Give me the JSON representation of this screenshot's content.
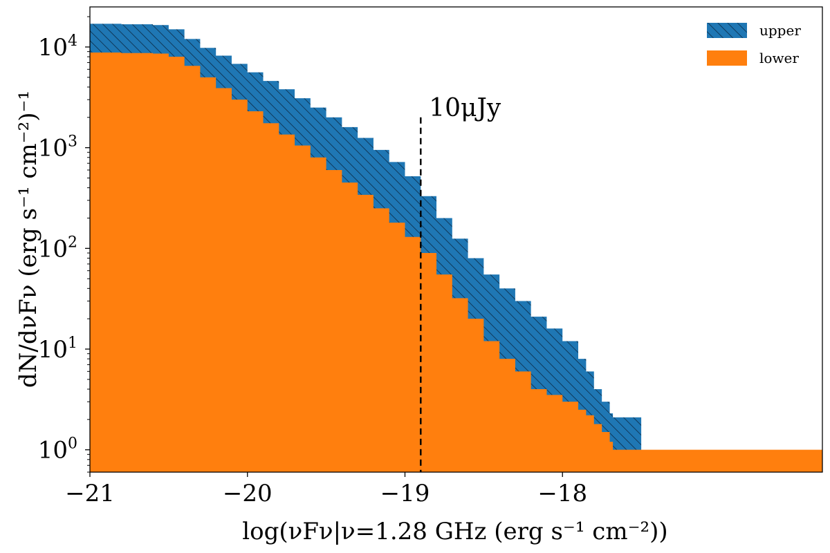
{
  "chart_data": {
    "type": "area",
    "title": "",
    "xlabel": "log(νFν|ν=1.28 GHz (erg s⁻¹ cm⁻²))",
    "ylabel": "dN/dνFν (erg s⁻¹ cm⁻²)⁻¹",
    "xlim": [
      -21.0,
      -16.35
    ],
    "ylim": [
      0.6,
      25000
    ],
    "y_scale": "log",
    "grid": false,
    "legend_position": "top-right",
    "x_ticks": [
      -21,
      -20,
      -19,
      -18
    ],
    "x_tick_labels": [
      "−21",
      "−20",
      "−19",
      "−18"
    ],
    "y_ticks": [
      1,
      10,
      100,
      1000,
      10000
    ],
    "y_tick_labels": [
      {
        "base": "10",
        "exp": "0"
      },
      {
        "base": "10",
        "exp": "1"
      },
      {
        "base": "10",
        "exp": "2"
      },
      {
        "base": "10",
        "exp": "3"
      },
      {
        "base": "10",
        "exp": "4"
      }
    ],
    "series": [
      {
        "name": "upper",
        "color": "#1f77b4",
        "hatch": true,
        "x": [
          -21.0,
          -20.8,
          -20.6,
          -20.5,
          -20.4,
          -20.3,
          -20.2,
          -20.1,
          -20.0,
          -19.9,
          -19.8,
          -19.7,
          -19.6,
          -19.5,
          -19.4,
          -19.3,
          -19.2,
          -19.1,
          -19.0,
          -18.9,
          -18.8,
          -18.7,
          -18.6,
          -18.5,
          -18.4,
          -18.3,
          -18.2,
          -18.1,
          -18.0,
          -17.9,
          -17.85,
          -17.8,
          -17.75,
          -17.7,
          -17.68,
          -17.5
        ],
        "y": [
          17000,
          16800,
          16500,
          15000,
          12000,
          9800,
          8200,
          6800,
          5600,
          4600,
          3800,
          3100,
          2500,
          2000,
          1600,
          1250,
          950,
          720,
          520,
          330,
          200,
          125,
          80,
          55,
          40,
          30,
          21,
          16,
          12,
          8,
          6,
          4,
          3,
          2.3,
          2.1,
          2.1
        ]
      },
      {
        "name": "lower",
        "color": "#ff7f0e",
        "hatch": false,
        "x": [
          -21.0,
          -20.8,
          -20.6,
          -20.5,
          -20.4,
          -20.3,
          -20.2,
          -20.1,
          -20.0,
          -19.9,
          -19.8,
          -19.7,
          -19.6,
          -19.5,
          -19.4,
          -19.3,
          -19.2,
          -19.1,
          -19.0,
          -18.9,
          -18.8,
          -18.7,
          -18.6,
          -18.5,
          -18.4,
          -18.3,
          -18.2,
          -18.1,
          -18.0,
          -17.9,
          -17.85,
          -17.8,
          -17.75,
          -17.7,
          -17.68,
          -17.5,
          -17.0,
          -16.35
        ],
        "y": [
          8800,
          8700,
          8600,
          8000,
          6500,
          5000,
          3900,
          3000,
          2300,
          1750,
          1350,
          1050,
          800,
          600,
          450,
          340,
          250,
          180,
          130,
          90,
          55,
          32,
          20,
          12,
          8,
          6,
          4,
          3.5,
          3,
          2.5,
          2.2,
          1.8,
          1.5,
          1.2,
          1.0,
          1.0,
          1.0,
          1.0
        ]
      }
    ],
    "annotations": [
      {
        "type": "vline",
        "x": -18.9,
        "y_top": 2000,
        "style": "dashed",
        "label": "10μJy"
      }
    ]
  },
  "legend": {
    "items": [
      {
        "label": "upper",
        "color": "#1f77b4",
        "hatch": true
      },
      {
        "label": "lower",
        "color": "#ff7f0e",
        "hatch": false
      }
    ]
  }
}
